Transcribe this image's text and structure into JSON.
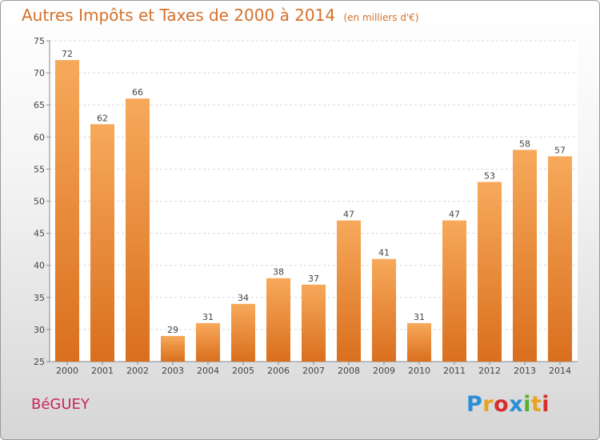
{
  "header": {
    "title": "Autres Impôts et Taxes de 2000 à 2014",
    "unit": "(en milliers d'€)"
  },
  "footer": {
    "commune": "BéGUEY",
    "logo_letters": [
      "P",
      "r",
      "o",
      "x",
      "i",
      "t",
      "i"
    ]
  },
  "colors": {
    "bar_light": "#f7a95a",
    "bar_dark": "#d96f1e",
    "title": "#d4712a",
    "commune": "#c8245a"
  },
  "chart_data": {
    "type": "bar",
    "title": "Autres Impôts et Taxes de 2000 à 2014",
    "xlabel": "",
    "ylabel": "",
    "categories": [
      "2000",
      "2001",
      "2002",
      "2003",
      "2004",
      "2005",
      "2006",
      "2007",
      "2008",
      "2009",
      "2010",
      "2011",
      "2012",
      "2013",
      "2014"
    ],
    "values": [
      72,
      62,
      66,
      29,
      31,
      34,
      38,
      37,
      47,
      41,
      31,
      47,
      53,
      58,
      57
    ],
    "ylim": [
      25,
      75
    ],
    "yticks": [
      25,
      30,
      35,
      40,
      45,
      50,
      55,
      60,
      65,
      70,
      75
    ],
    "grid": true,
    "legend": "none"
  }
}
